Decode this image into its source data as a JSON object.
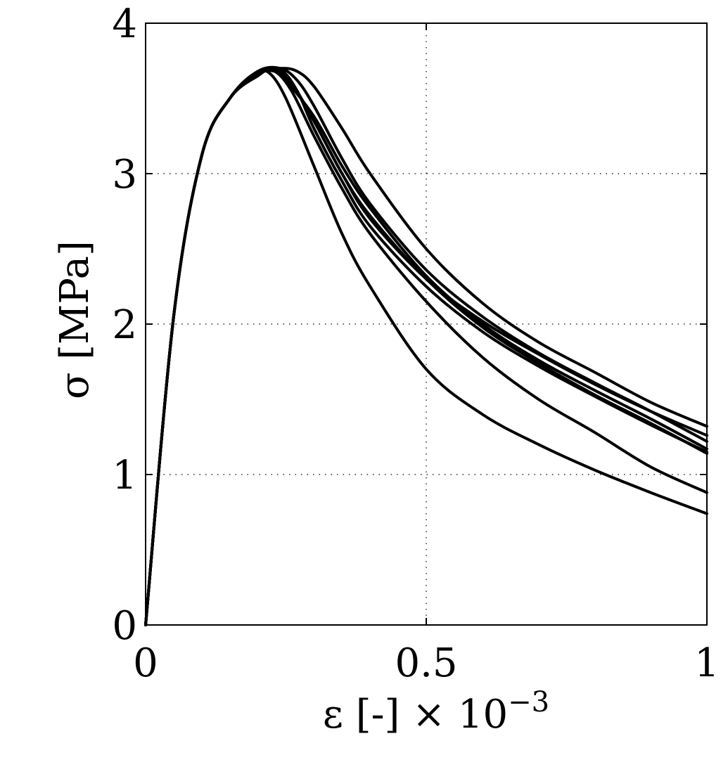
{
  "chart_data": {
    "type": "line",
    "title": "",
    "xlabel": "ε [-] × 10⁻³",
    "ylabel": "σ [MPa]",
    "xlim": [
      0,
      1
    ],
    "ylim": [
      0,
      4
    ],
    "xticks": [
      0,
      0.5,
      1
    ],
    "xtick_labels": [
      "0",
      "0.5",
      "1"
    ],
    "yticks": [
      0,
      1,
      2,
      3,
      4
    ],
    "ytick_labels": [
      "0",
      "1",
      "2",
      "3",
      "4"
    ],
    "grid": true,
    "grid_style": "dotted",
    "line_color": "#000000",
    "series": [
      {
        "x": [
          0,
          0.05,
          0.1,
          0.15,
          0.2,
          0.22,
          0.25,
          0.3,
          0.35,
          0.4,
          0.5,
          0.6,
          0.7,
          0.8,
          0.9,
          1.0
        ],
        "y": [
          0,
          2.05,
          3.12,
          3.5,
          3.65,
          3.67,
          3.5,
          3.05,
          2.6,
          2.25,
          1.7,
          1.4,
          1.2,
          1.03,
          0.88,
          0.74
        ]
      },
      {
        "x": [
          0,
          0.05,
          0.1,
          0.15,
          0.2,
          0.23,
          0.26,
          0.3,
          0.35,
          0.4,
          0.5,
          0.6,
          0.7,
          0.8,
          0.9,
          1.0
        ],
        "y": [
          0,
          2.05,
          3.12,
          3.5,
          3.67,
          3.68,
          3.55,
          3.25,
          2.9,
          2.6,
          2.15,
          1.78,
          1.5,
          1.28,
          1.05,
          0.88
        ]
      },
      {
        "x": [
          0,
          0.05,
          0.1,
          0.15,
          0.2,
          0.23,
          0.26,
          0.3,
          0.35,
          0.4,
          0.5,
          0.6,
          0.7,
          0.8,
          0.9,
          1.0
        ],
        "y": [
          0,
          2.05,
          3.12,
          3.5,
          3.67,
          3.7,
          3.6,
          3.35,
          3.0,
          2.7,
          2.3,
          2.02,
          1.8,
          1.6,
          1.42,
          1.26
        ]
      },
      {
        "x": [
          0,
          0.05,
          0.1,
          0.15,
          0.2,
          0.24,
          0.27,
          0.3,
          0.35,
          0.4,
          0.5,
          0.6,
          0.7,
          0.8,
          0.9,
          1.0
        ],
        "y": [
          0,
          2.05,
          3.12,
          3.5,
          3.68,
          3.69,
          3.55,
          3.3,
          2.95,
          2.65,
          2.25,
          1.95,
          1.72,
          1.52,
          1.33,
          1.15
        ]
      },
      {
        "x": [
          0,
          0.05,
          0.1,
          0.15,
          0.2,
          0.23,
          0.26,
          0.3,
          0.35,
          0.4,
          0.5,
          0.6,
          0.7,
          0.8,
          0.9,
          1.0
        ],
        "y": [
          0,
          2.05,
          3.12,
          3.5,
          3.66,
          3.68,
          3.6,
          3.35,
          3.0,
          2.72,
          2.3,
          1.98,
          1.74,
          1.53,
          1.34,
          1.14
        ]
      },
      {
        "x": [
          0,
          0.05,
          0.1,
          0.15,
          0.2,
          0.24,
          0.27,
          0.3,
          0.35,
          0.4,
          0.5,
          0.6,
          0.7,
          0.8,
          0.9,
          1.0
        ],
        "y": [
          0,
          2.05,
          3.12,
          3.5,
          3.68,
          3.7,
          3.62,
          3.45,
          3.1,
          2.8,
          2.36,
          2.05,
          1.81,
          1.61,
          1.42,
          1.22
        ]
      },
      {
        "x": [
          0,
          0.05,
          0.1,
          0.15,
          0.2,
          0.24,
          0.27,
          0.3,
          0.35,
          0.4,
          0.5,
          0.6,
          0.7,
          0.8,
          0.9,
          1.0
        ],
        "y": [
          0,
          2.05,
          3.12,
          3.5,
          3.67,
          3.7,
          3.68,
          3.58,
          3.3,
          3.0,
          2.5,
          2.14,
          1.88,
          1.68,
          1.48,
          1.32
        ]
      },
      {
        "x": [
          0,
          0.05,
          0.1,
          0.15,
          0.2,
          0.23,
          0.25,
          0.3,
          0.35,
          0.4,
          0.5,
          0.6,
          0.7,
          0.8,
          0.9,
          1.0
        ],
        "y": [
          0,
          2.05,
          3.12,
          3.5,
          3.66,
          3.69,
          3.62,
          3.38,
          3.05,
          2.77,
          2.32,
          2.0,
          1.76,
          1.56,
          1.37,
          1.17
        ]
      }
    ]
  }
}
